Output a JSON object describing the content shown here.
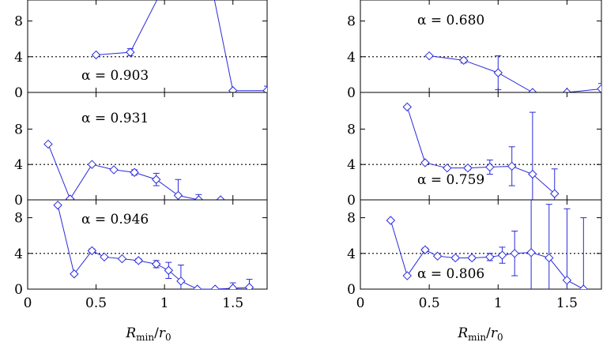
{
  "chart_data": [
    {
      "type": "line",
      "title": "",
      "alpha_label": "α = 0.903",
      "xlabel": "",
      "ylabel": "",
      "xlim": [
        0,
        1.75
      ],
      "ylim": [
        0,
        10
      ],
      "yticks": [
        "0",
        "4",
        "8"
      ],
      "xticks": [],
      "reference_line": 4,
      "series": [
        {
          "points": [
            [
              0.5,
              4.2
            ],
            [
              0.75,
              4.5
            ],
            [
              1.0,
              12.0
            ],
            [
              1.35,
              11.5
            ],
            [
              1.5,
              0.2
            ],
            [
              1.75,
              0.2
            ]
          ],
          "errors": [
            0,
            0.4,
            0,
            0,
            0,
            0.5
          ]
        }
      ]
    },
    {
      "type": "line",
      "title": "",
      "alpha_label": "α = 0.931",
      "xlabel": "",
      "ylabel": "",
      "xlim": [
        0,
        1.75
      ],
      "ylim": [
        0,
        10
      ],
      "yticks": [
        "0",
        "4",
        "8"
      ],
      "xticks": [],
      "reference_line": 4,
      "series": [
        {
          "points": [
            [
              0.15,
              6.3
            ],
            [
              0.31,
              0.1
            ],
            [
              0.47,
              4.0
            ],
            [
              0.63,
              3.4
            ],
            [
              0.78,
              3.1
            ],
            [
              0.94,
              2.3
            ],
            [
              1.1,
              0.5
            ],
            [
              1.25,
              0.0
            ],
            [
              1.41,
              0.0
            ]
          ],
          "errors": [
            0,
            0,
            0,
            0,
            0.3,
            0.7,
            1.8,
            0.6,
            0
          ]
        }
      ]
    },
    {
      "type": "line",
      "title": "",
      "alpha_label": "α = 0.946",
      "xlabel": "R_min/r_0",
      "ylabel": "",
      "xlim": [
        0,
        1.75
      ],
      "ylim": [
        0,
        10
      ],
      "yticks": [
        "0",
        "4",
        "8"
      ],
      "xticks": [
        "0",
        "0.5",
        "1",
        "1.5"
      ],
      "reference_line": 4,
      "series": [
        {
          "points": [
            [
              0.22,
              9.4
            ],
            [
              0.34,
              1.7
            ],
            [
              0.47,
              4.3
            ],
            [
              0.56,
              3.6
            ],
            [
              0.69,
              3.4
            ],
            [
              0.81,
              3.2
            ],
            [
              0.94,
              2.8
            ],
            [
              1.03,
              2.1
            ],
            [
              1.12,
              0.9
            ],
            [
              1.24,
              0.0
            ],
            [
              1.37,
              0.0
            ],
            [
              1.5,
              0.1
            ],
            [
              1.62,
              0.2
            ]
          ],
          "errors": [
            0,
            0,
            0.2,
            0,
            0,
            0.2,
            0.4,
            0.9,
            1.8,
            0,
            0,
            0.6,
            0.9
          ]
        }
      ]
    },
    {
      "type": "line",
      "title": "",
      "alpha_label": "α = 0.680",
      "xlabel": "",
      "ylabel": "",
      "xlim": [
        0,
        1.75
      ],
      "ylim": [
        0,
        10
      ],
      "yticks": [
        "0",
        "4",
        "8"
      ],
      "xticks": [],
      "reference_line": 4,
      "series": [
        {
          "points": [
            [
              0.5,
              4.1
            ],
            [
              0.75,
              3.6
            ],
            [
              1.0,
              2.2
            ],
            [
              1.25,
              0.0
            ],
            [
              1.5,
              0.0
            ],
            [
              1.75,
              0.4
            ]
          ],
          "errors": [
            0,
            0.3,
            1.9,
            0,
            0,
            0.6
          ]
        }
      ]
    },
    {
      "type": "line",
      "title": "",
      "alpha_label": "α = 0.759",
      "xlabel": "",
      "ylabel": "",
      "xlim": [
        0,
        1.75
      ],
      "ylim": [
        0,
        10
      ],
      "yticks": [
        "0",
        "4",
        "8"
      ],
      "xticks": [],
      "reference_line": 4,
      "series": [
        {
          "points": [
            [
              0.34,
              10.5
            ],
            [
              0.47,
              4.2
            ],
            [
              0.63,
              3.6
            ],
            [
              0.78,
              3.6
            ],
            [
              0.94,
              3.7
            ],
            [
              1.1,
              3.8
            ],
            [
              1.25,
              2.9
            ],
            [
              1.41,
              0.7
            ]
          ],
          "errors": [
            0,
            0,
            0,
            0.2,
            0.8,
            2.2,
            7.0,
            2.8
          ]
        }
      ]
    },
    {
      "type": "line",
      "title": "",
      "alpha_label": "α = 0.806",
      "xlabel": "R_min/r_0",
      "ylabel": "",
      "xlim": [
        0,
        1.75
      ],
      "ylim": [
        0,
        10
      ],
      "yticks": [
        "0",
        "4",
        "8"
      ],
      "xticks": [
        "0",
        "0.5",
        "1",
        "1.5"
      ],
      "reference_line": 4,
      "series": [
        {
          "points": [
            [
              0.22,
              7.7
            ],
            [
              0.34,
              1.5
            ],
            [
              0.47,
              4.4
            ],
            [
              0.56,
              3.7
            ],
            [
              0.69,
              3.5
            ],
            [
              0.81,
              3.5
            ],
            [
              0.94,
              3.6
            ],
            [
              1.03,
              3.8
            ],
            [
              1.12,
              4.0
            ],
            [
              1.24,
              4.1
            ],
            [
              1.37,
              3.5
            ],
            [
              1.5,
              1.0
            ],
            [
              1.62,
              0.0
            ]
          ],
          "errors": [
            0,
            0,
            0.2,
            0,
            0.2,
            0.2,
            0.4,
            0.9,
            2.5,
            6.0,
            6.0,
            8.0,
            8.0
          ]
        }
      ]
    }
  ]
}
